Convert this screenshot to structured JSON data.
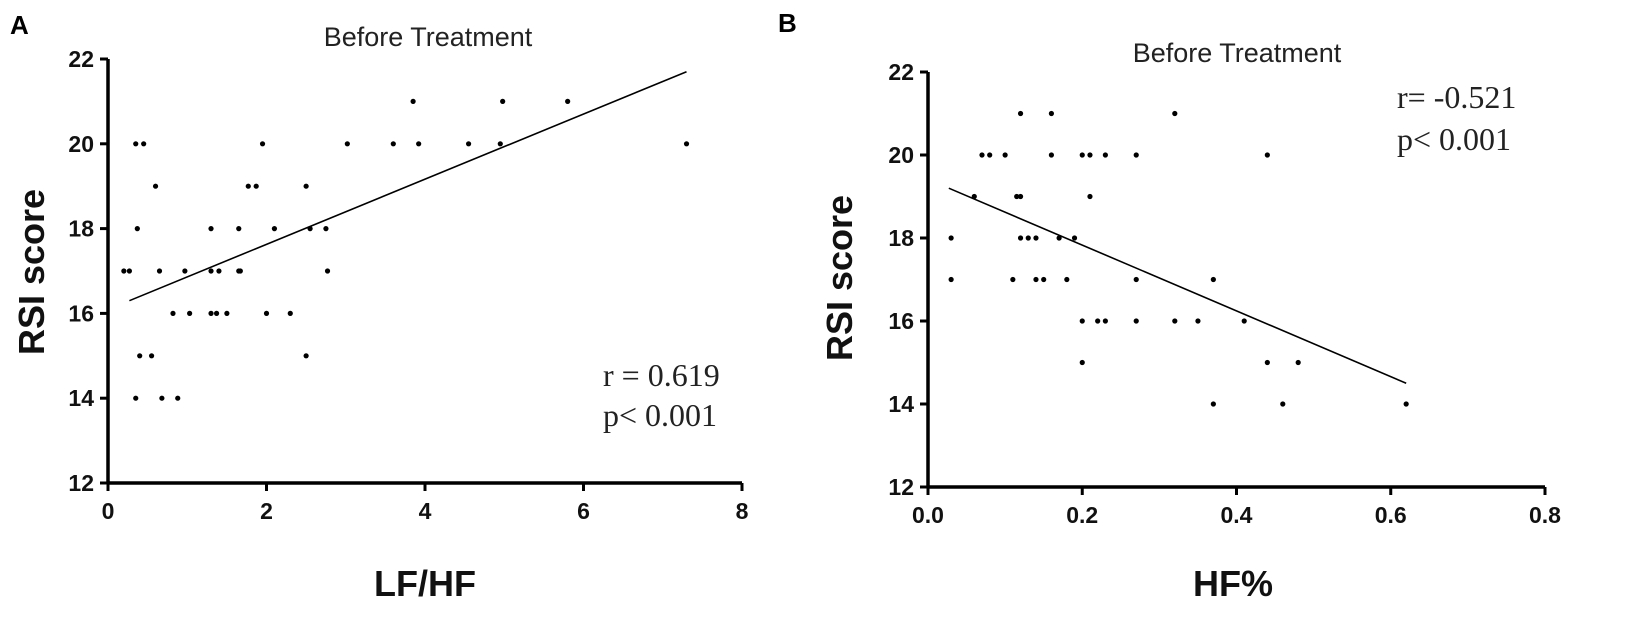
{
  "chart_data": [
    {
      "type": "scatter",
      "panel": "A",
      "title": "Before Treatment",
      "xlabel": "LF/HF",
      "ylabel": "RSI score",
      "xlim": [
        0,
        8
      ],
      "ylim": [
        12,
        22
      ],
      "xticks": [
        0,
        2,
        4,
        6,
        8
      ],
      "yticks": [
        12,
        14,
        16,
        18,
        20,
        22
      ],
      "grid": false,
      "stats": {
        "r": "r = 0.619",
        "p": "p< 0.001"
      },
      "fit_line": {
        "x": [
          0.27,
          7.3
        ],
        "y": [
          16.3,
          21.7
        ]
      },
      "points": [
        [
          0.2,
          17
        ],
        [
          0.27,
          17
        ],
        [
          0.35,
          20
        ],
        [
          0.45,
          20
        ],
        [
          0.37,
          18
        ],
        [
          0.4,
          15
        ],
        [
          0.55,
          15
        ],
        [
          0.6,
          19
        ],
        [
          0.35,
          14
        ],
        [
          0.68,
          14
        ],
        [
          0.88,
          14
        ],
        [
          0.65,
          17
        ],
        [
          0.97,
          17
        ],
        [
          0.82,
          16
        ],
        [
          1.03,
          16
        ],
        [
          1.3,
          18
        ],
        [
          1.3,
          17
        ],
        [
          1.4,
          17
        ],
        [
          1.3,
          16
        ],
        [
          1.37,
          16
        ],
        [
          1.5,
          16
        ],
        [
          1.65,
          18
        ],
        [
          1.65,
          17
        ],
        [
          1.67,
          17
        ],
        [
          1.77,
          19
        ],
        [
          1.87,
          19
        ],
        [
          1.95,
          20
        ],
        [
          2.1,
          18
        ],
        [
          2.0,
          16
        ],
        [
          2.3,
          16
        ],
        [
          2.5,
          19
        ],
        [
          2.55,
          18
        ],
        [
          2.5,
          15
        ],
        [
          2.75,
          18
        ],
        [
          2.77,
          17
        ],
        [
          3.02,
          20
        ],
        [
          3.6,
          20
        ],
        [
          3.85,
          21
        ],
        [
          3.92,
          20
        ],
        [
          4.55,
          20
        ],
        [
          4.98,
          21
        ],
        [
          4.95,
          20
        ],
        [
          5.8,
          21
        ],
        [
          7.3,
          20
        ]
      ]
    },
    {
      "type": "scatter",
      "panel": "B",
      "title": "Before Treatment",
      "xlabel": "HF%",
      "ylabel": "RSI score",
      "xlim": [
        0,
        0.8
      ],
      "ylim": [
        12,
        22
      ],
      "xticks": [
        "0.0",
        "0.2",
        "0.4",
        "0.6",
        "0.8"
      ],
      "yticks": [
        12,
        14,
        16,
        18,
        20,
        22
      ],
      "grid": false,
      "stats": {
        "r": "r= -0.521",
        "p": "p< 0.001"
      },
      "fit_line": {
        "x": [
          0.027,
          0.62
        ],
        "y": [
          19.2,
          14.5
        ]
      },
      "points": [
        [
          0.03,
          18
        ],
        [
          0.03,
          17
        ],
        [
          0.06,
          19
        ],
        [
          0.07,
          20
        ],
        [
          0.08,
          20
        ],
        [
          0.1,
          20
        ],
        [
          0.11,
          17
        ],
        [
          0.115,
          19
        ],
        [
          0.12,
          21
        ],
        [
          0.12,
          19
        ],
        [
          0.12,
          18
        ],
        [
          0.13,
          18
        ],
        [
          0.14,
          18
        ],
        [
          0.14,
          17
        ],
        [
          0.15,
          17
        ],
        [
          0.16,
          21
        ],
        [
          0.16,
          20
        ],
        [
          0.17,
          18
        ],
        [
          0.18,
          17
        ],
        [
          0.19,
          18
        ],
        [
          0.2,
          16
        ],
        [
          0.2,
          15
        ],
        [
          0.2,
          20
        ],
        [
          0.21,
          20
        ],
        [
          0.21,
          19
        ],
        [
          0.22,
          16
        ],
        [
          0.23,
          16
        ],
        [
          0.23,
          20
        ],
        [
          0.27,
          20
        ],
        [
          0.27,
          17
        ],
        [
          0.27,
          16
        ],
        [
          0.32,
          21
        ],
        [
          0.32,
          16
        ],
        [
          0.35,
          16
        ],
        [
          0.37,
          17
        ],
        [
          0.37,
          14
        ],
        [
          0.41,
          16
        ],
        [
          0.44,
          20
        ],
        [
          0.44,
          15
        ],
        [
          0.46,
          14
        ],
        [
          0.48,
          15
        ],
        [
          0.62,
          14
        ]
      ]
    }
  ]
}
